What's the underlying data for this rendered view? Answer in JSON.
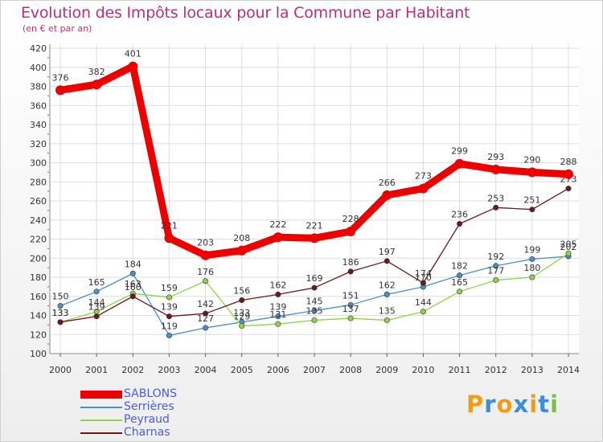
{
  "title": "Evolution des Impôts locaux pour la Commune par Habitant",
  "subtitle": "(en € et par an)",
  "logo": {
    "text": "Proxiti",
    "colors": [
      "#f39c12",
      "#3a8fd8",
      "#f39c12",
      "#3a8fd8",
      "#f39c12",
      "#3a8fd8",
      "#7cc242"
    ]
  },
  "chart_data": {
    "type": "line",
    "title": "Evolution des Impôts locaux pour la Commune par Habitant",
    "subtitle": "(en € et par an)",
    "xlabel": "",
    "ylabel": "",
    "x": [
      "2000",
      "2001",
      "2002",
      "2003",
      "2004",
      "2005",
      "2006",
      "2007",
      "2008",
      "2009",
      "2010",
      "2011",
      "2012",
      "2013",
      "2014"
    ],
    "ylim": [
      100,
      420
    ],
    "yticks": [
      100,
      120,
      140,
      160,
      180,
      200,
      220,
      240,
      260,
      280,
      300,
      320,
      340,
      360,
      380,
      400,
      420
    ],
    "grid": true,
    "legend": "bottom-left",
    "series": [
      {
        "name": "Serrières",
        "color": "#4a90c8",
        "values": [
          150,
          165,
          184,
          119,
          127,
          133,
          139,
          145,
          151,
          162,
          170,
          182,
          192,
          199,
          202
        ]
      },
      {
        "name": "Peyraud",
        "color": "#8fd24a",
        "values": [
          133,
          144,
          163,
          159,
          176,
          129,
          131,
          135,
          137,
          135,
          144,
          165,
          177,
          180,
          205
        ]
      },
      {
        "name": "Charnas",
        "color": "#6b1a1a",
        "values": [
          133,
          139,
          160,
          139,
          142,
          156,
          162,
          169,
          186,
          197,
          174,
          236,
          253,
          251,
          273
        ]
      },
      {
        "name": "SABLONS",
        "color": "#ee0000",
        "values": [
          376,
          382,
          401,
          221,
          203,
          208,
          222,
          221,
          228,
          266,
          273,
          299,
          293,
          290,
          288
        ]
      }
    ],
    "legend_order": [
      "SABLONS",
      "Serrières",
      "Peyraud",
      "Charnas"
    ]
  }
}
